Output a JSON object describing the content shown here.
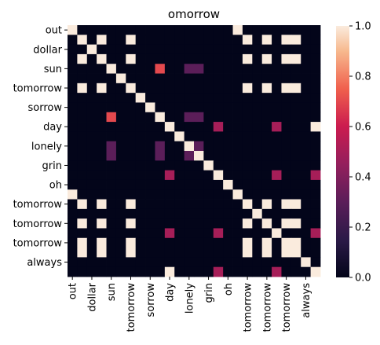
{
  "chart_data": {
    "type": "heatmap",
    "title": "omorrow",
    "xlabel": "",
    "ylabel": "",
    "labels": [
      "out",
      "",
      "dollar",
      "",
      "sun",
      "",
      "tomorrow",
      "",
      "sorrow",
      "",
      "day",
      "",
      "lonely",
      "",
      "grin",
      "",
      "oh",
      "",
      "tomorrow",
      "",
      "tomorrow",
      "",
      "tomorrow",
      "",
      "always",
      ""
    ],
    "x_tick_labels": [
      "out",
      "dollar",
      "sun",
      "tomorrow",
      "sorrow",
      "day",
      "lonely",
      "grin",
      "oh",
      "tomorrow",
      "tomorrow",
      "tomorrow",
      "always"
    ],
    "y_tick_labels": [
      "out",
      "dollar",
      "sun",
      "tomorrow",
      "sorrow",
      "day",
      "lonely",
      "grin",
      "oh",
      "tomorrow",
      "tomorrow",
      "tomorrow",
      "always"
    ],
    "colorbar": {
      "min": 0.0,
      "max": 1.0,
      "ticks": [
        "0.0",
        "0.2",
        "0.4",
        "0.6",
        "0.8",
        "1.0"
      ],
      "colormap": "rocket"
    },
    "grid": false,
    "values": [
      [
        1,
        0,
        0,
        0,
        0,
        0,
        0,
        0,
        0,
        0,
        0,
        0,
        0,
        0,
        0,
        0,
        0,
        1,
        0,
        0,
        0,
        0,
        0,
        0,
        0,
        0
      ],
      [
        0,
        1,
        0,
        1,
        0,
        0,
        1,
        0,
        0,
        0,
        0,
        0,
        0,
        0,
        0,
        0,
        0,
        0,
        1,
        0,
        1,
        0,
        1,
        1,
        0,
        0
      ],
      [
        0,
        0,
        1,
        0,
        0,
        0,
        0,
        0,
        0,
        0,
        0,
        0,
        0,
        0,
        0,
        0,
        0,
        0,
        0,
        0,
        0,
        0,
        0,
        0,
        0,
        0
      ],
      [
        0,
        1,
        0,
        1,
        0,
        0,
        1,
        0,
        0,
        0,
        0,
        0,
        0,
        0,
        0,
        0,
        0,
        0,
        1,
        0,
        1,
        0,
        1,
        1,
        0,
        0
      ],
      [
        0,
        0,
        0,
        0,
        1,
        0,
        0,
        0,
        0,
        0.7,
        0,
        0,
        0.3,
        0.3,
        0,
        0,
        0,
        0,
        0,
        0,
        0,
        0,
        0,
        0,
        0,
        0
      ],
      [
        0,
        0,
        0,
        0,
        0,
        1,
        0,
        0,
        0,
        0,
        0,
        0,
        0,
        0,
        0,
        0,
        0,
        0,
        0,
        0,
        0,
        0,
        0,
        0,
        0,
        0
      ],
      [
        0,
        1,
        0,
        1,
        0,
        0,
        1,
        0,
        0,
        0,
        0,
        0,
        0,
        0,
        0,
        0,
        0,
        0,
        1,
        0,
        1,
        0,
        1,
        1,
        0,
        0
      ],
      [
        0,
        0,
        0,
        0,
        0,
        0,
        0,
        1,
        0,
        0,
        0,
        0,
        0,
        0,
        0,
        0,
        0,
        0,
        0,
        0,
        0,
        0,
        0,
        0,
        0,
        0
      ],
      [
        0,
        0,
        0,
        0,
        0,
        0,
        0,
        0,
        1,
        0,
        0,
        0,
        0,
        0,
        0,
        0,
        0,
        0,
        0,
        0,
        0,
        0,
        0,
        0,
        0,
        0
      ],
      [
        0,
        0,
        0,
        0,
        0.7,
        0,
        0,
        0,
        0,
        1,
        0,
        0,
        0.3,
        0.3,
        0,
        0,
        0,
        0,
        0,
        0,
        0,
        0,
        0,
        0,
        0,
        0
      ],
      [
        0,
        0,
        0,
        0,
        0,
        0,
        0,
        0,
        0,
        0,
        1,
        0,
        0,
        0,
        0,
        0.5,
        0,
        0,
        0,
        0,
        0,
        0.5,
        0,
        0,
        0,
        1
      ],
      [
        0,
        0,
        0,
        0,
        0,
        0,
        0,
        0,
        0,
        0,
        0,
        1,
        0,
        0,
        0,
        0,
        0,
        0,
        0,
        0,
        0,
        0,
        0,
        0,
        0,
        0
      ],
      [
        0,
        0,
        0,
        0,
        0.3,
        0,
        0,
        0,
        0,
        0.3,
        0,
        0,
        1,
        0.3,
        0,
        0,
        0,
        0,
        0,
        0,
        0,
        0,
        0,
        0,
        0,
        0
      ],
      [
        0,
        0,
        0,
        0,
        0.3,
        0,
        0,
        0,
        0,
        0.3,
        0,
        0,
        0.3,
        1,
        0,
        0,
        0,
        0,
        0,
        0,
        0,
        0,
        0,
        0,
        0,
        0
      ],
      [
        0,
        0,
        0,
        0,
        0,
        0,
        0,
        0,
        0,
        0,
        0,
        0,
        0,
        0,
        1,
        0,
        0,
        0,
        0,
        0,
        0,
        0,
        0,
        0,
        0,
        0
      ],
      [
        0,
        0,
        0,
        0,
        0,
        0,
        0,
        0,
        0,
        0,
        0.5,
        0,
        0,
        0,
        0,
        1,
        0,
        0,
        0,
        0,
        0,
        0.5,
        0,
        0,
        0,
        0.5
      ],
      [
        0,
        0,
        0,
        0,
        0,
        0,
        0,
        0,
        0,
        0,
        0,
        0,
        0,
        0,
        0,
        0,
        1,
        0,
        0,
        0,
        0,
        0,
        0,
        0,
        0,
        0
      ],
      [
        1,
        0,
        0,
        0,
        0,
        0,
        0,
        0,
        0,
        0,
        0,
        0,
        0,
        0,
        0,
        0,
        0,
        1,
        0,
        0,
        0,
        0,
        0,
        0,
        0,
        0
      ],
      [
        0,
        1,
        0,
        1,
        0,
        0,
        1,
        0,
        0,
        0,
        0,
        0,
        0,
        0,
        0,
        0,
        0,
        0,
        1,
        0,
        1,
        0,
        1,
        1,
        0,
        0
      ],
      [
        0,
        0,
        0,
        0,
        0,
        0,
        0,
        0,
        0,
        0,
        0,
        0,
        0,
        0,
        0,
        0,
        0,
        0,
        0,
        1,
        0,
        0,
        0,
        0,
        0,
        0
      ],
      [
        0,
        1,
        0,
        1,
        0,
        0,
        1,
        0,
        0,
        0,
        0,
        0,
        0,
        0,
        0,
        0,
        0,
        0,
        1,
        0,
        1,
        0,
        1,
        1,
        0,
        0
      ],
      [
        0,
        0,
        0,
        0,
        0,
        0,
        0,
        0,
        0,
        0,
        0.5,
        0,
        0,
        0,
        0,
        0.5,
        0,
        0,
        0,
        0,
        0,
        1,
        0,
        0,
        0,
        0.5
      ],
      [
        0,
        1,
        0,
        1,
        0,
        0,
        1,
        0,
        0,
        0,
        0,
        0,
        0,
        0,
        0,
        0,
        0,
        0,
        1,
        0,
        1,
        0,
        1,
        1,
        0,
        0
      ],
      [
        0,
        1,
        0,
        1,
        0,
        0,
        1,
        0,
        0,
        0,
        0,
        0,
        0,
        0,
        0,
        0,
        0,
        0,
        1,
        0,
        1,
        0,
        1,
        1,
        0,
        0
      ],
      [
        0,
        0,
        0,
        0,
        0,
        0,
        0,
        0,
        0,
        0,
        0,
        0,
        0,
        0,
        0,
        0,
        0,
        0,
        0,
        0,
        0,
        0,
        0,
        0,
        1,
        0
      ],
      [
        0,
        0,
        0,
        0,
        0,
        0,
        0,
        0,
        0,
        0,
        1,
        0,
        0,
        0,
        0,
        0.5,
        0,
        0,
        0,
        0,
        0,
        0.5,
        0,
        0,
        0,
        1
      ]
    ]
  }
}
